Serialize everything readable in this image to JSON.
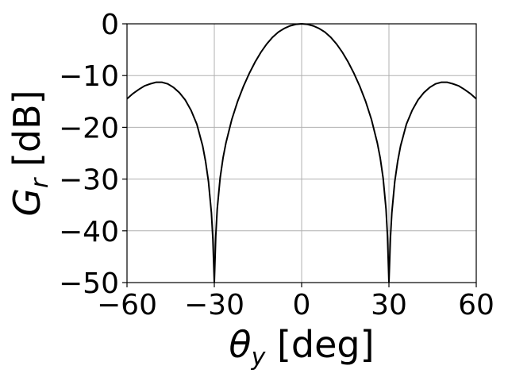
{
  "chart_data": {
    "type": "line",
    "title": "",
    "xlabel": {
      "symbol": "θ",
      "sub": "y",
      "unit": " [deg]"
    },
    "ylabel": {
      "symbol": "G",
      "sub": "r",
      "unit": " [dB]"
    },
    "xlim": [
      -60,
      60
    ],
    "ylim": [
      -50,
      0
    ],
    "xticks": [
      -60,
      -30,
      0,
      30,
      60
    ],
    "yticks": [
      0,
      -10,
      -20,
      -30,
      -40,
      -50
    ],
    "xtick_labels": [
      "−60",
      "−30",
      "0",
      "30",
      "60"
    ],
    "ytick_labels": [
      "0",
      "−10",
      "−20",
      "−30",
      "−40",
      "−50"
    ],
    "grid": true,
    "series": [
      {
        "color": "#000000",
        "x": [
          -60,
          -58,
          -56,
          -54,
          -52,
          -50,
          -48,
          -46,
          -44,
          -42,
          -40,
          -38,
          -36,
          -34,
          -33,
          -32,
          -31,
          -30.5,
          -30,
          -29.5,
          -29,
          -28,
          -27,
          -26,
          -24,
          -22,
          -20,
          -18,
          -16,
          -14,
          -12,
          -10,
          -8,
          -6,
          -4,
          -2,
          0,
          2,
          4,
          6,
          8,
          10,
          12,
          14,
          16,
          18,
          20,
          22,
          24,
          26,
          27,
          28,
          29,
          29.5,
          30,
          30.5,
          31,
          32,
          33,
          34,
          36,
          38,
          40,
          42,
          44,
          46,
          48,
          50,
          52,
          54,
          56,
          58,
          60
        ],
        "y": [
          -14.5,
          -13.5,
          -12.7,
          -12.0,
          -11.6,
          -11.3,
          -11.3,
          -11.6,
          -12.3,
          -13.3,
          -14.7,
          -16.7,
          -19.4,
          -23.6,
          -26.6,
          -30.5,
          -36.5,
          -41.5,
          -50,
          -41.0,
          -35.8,
          -29.8,
          -25.9,
          -23.0,
          -18.5,
          -15.0,
          -12.1,
          -9.6,
          -7.4,
          -5.5,
          -3.9,
          -2.6,
          -1.6,
          -0.9,
          -0.4,
          -0.1,
          0,
          -0.1,
          -0.4,
          -0.9,
          -1.6,
          -2.6,
          -3.9,
          -5.5,
          -7.4,
          -9.6,
          -12.1,
          -15.0,
          -18.5,
          -23.0,
          -25.9,
          -29.8,
          -35.8,
          -41.0,
          -50,
          -41.5,
          -36.5,
          -30.5,
          -26.6,
          -23.6,
          -19.4,
          -16.7,
          -14.7,
          -13.3,
          -12.3,
          -11.6,
          -11.3,
          -11.3,
          -11.6,
          -12.0,
          -12.7,
          -13.5,
          -14.5
        ]
      }
    ]
  }
}
